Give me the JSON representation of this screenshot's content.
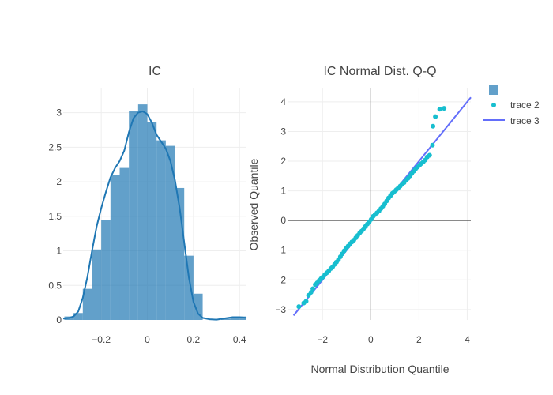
{
  "chart_data": [
    {
      "type": "bar",
      "title": "IC",
      "xlabel": "",
      "ylabel": "",
      "xlim": [
        -0.365,
        0.43
      ],
      "ylim": [
        0,
        3.35
      ],
      "x_ticks": [
        -0.2,
        0,
        0.2,
        0.4
      ],
      "x_tick_labels": [
        "−0.2",
        "0",
        "0.2",
        "0.4"
      ],
      "y_ticks": [
        0,
        0.5,
        1,
        1.5,
        2,
        2.5,
        3
      ],
      "y_tick_labels": [
        "0",
        "0.5",
        "1",
        "1.5",
        "2",
        "2.5",
        "3"
      ],
      "grid": true,
      "bar_color": "#1f77b4",
      "bins": [
        {
          "x0": -0.36,
          "x1": -0.32,
          "y": 0.05
        },
        {
          "x0": -0.32,
          "x1": -0.28,
          "y": 0.1
        },
        {
          "x0": -0.28,
          "x1": -0.24,
          "y": 0.45
        },
        {
          "x0": -0.24,
          "x1": -0.2,
          "y": 1.02
        },
        {
          "x0": -0.2,
          "x1": -0.16,
          "y": 1.45
        },
        {
          "x0": -0.16,
          "x1": -0.12,
          "y": 2.1
        },
        {
          "x0": -0.12,
          "x1": -0.08,
          "y": 2.2
        },
        {
          "x0": -0.08,
          "x1": -0.04,
          "y": 3.02
        },
        {
          "x0": -0.04,
          "x1": 0.0,
          "y": 3.12
        },
        {
          "x0": 0.0,
          "x1": 0.04,
          "y": 2.86
        },
        {
          "x0": 0.04,
          "x1": 0.08,
          "y": 2.6
        },
        {
          "x0": 0.08,
          "x1": 0.12,
          "y": 2.52
        },
        {
          "x0": 0.12,
          "x1": 0.16,
          "y": 1.91
        },
        {
          "x0": 0.16,
          "x1": 0.2,
          "y": 0.93
        },
        {
          "x0": 0.2,
          "x1": 0.24,
          "y": 0.38
        },
        {
          "x0": 0.24,
          "x1": 0.28,
          "y": 0.0
        },
        {
          "x0": 0.28,
          "x1": 0.32,
          "y": 0.0
        },
        {
          "x0": 0.32,
          "x1": 0.36,
          "y": 0.02
        },
        {
          "x0": 0.36,
          "x1": 0.4,
          "y": 0.04
        },
        {
          "x0": 0.4,
          "x1": 0.43,
          "y": 0.05
        }
      ],
      "kde_color": "#1f77b4",
      "kde": [
        [
          -0.365,
          0.02
        ],
        [
          -0.34,
          0.03
        ],
        [
          -0.32,
          0.05
        ],
        [
          -0.3,
          0.12
        ],
        [
          -0.28,
          0.32
        ],
        [
          -0.26,
          0.62
        ],
        [
          -0.24,
          1.0
        ],
        [
          -0.22,
          1.35
        ],
        [
          -0.2,
          1.62
        ],
        [
          -0.18,
          1.85
        ],
        [
          -0.16,
          2.06
        ],
        [
          -0.14,
          2.2
        ],
        [
          -0.12,
          2.3
        ],
        [
          -0.1,
          2.45
        ],
        [
          -0.08,
          2.72
        ],
        [
          -0.06,
          2.92
        ],
        [
          -0.04,
          3.0
        ],
        [
          -0.02,
          3.02
        ],
        [
          0.0,
          2.98
        ],
        [
          0.02,
          2.85
        ],
        [
          0.04,
          2.68
        ],
        [
          0.06,
          2.58
        ],
        [
          0.08,
          2.48
        ],
        [
          0.1,
          2.3
        ],
        [
          0.12,
          2.02
        ],
        [
          0.14,
          1.62
        ],
        [
          0.16,
          1.12
        ],
        [
          0.18,
          0.62
        ],
        [
          0.2,
          0.26
        ],
        [
          0.22,
          0.09
        ],
        [
          0.24,
          0.03
        ],
        [
          0.27,
          0.01
        ],
        [
          0.3,
          0.005
        ],
        [
          0.33,
          0.02
        ],
        [
          0.37,
          0.04
        ],
        [
          0.4,
          0.04
        ],
        [
          0.43,
          0.03
        ]
      ]
    },
    {
      "type": "scatter",
      "title": "IC Normal Dist. Q-Q",
      "xlabel": "Normal Distribution Quantile",
      "ylabel": "Observed Quantile",
      "xlim": [
        -3.45,
        4.15
      ],
      "ylim": [
        -3.35,
        4.45
      ],
      "x_ticks": [
        -2,
        0,
        2,
        4
      ],
      "x_tick_labels": [
        "−2",
        "0",
        "2",
        "4"
      ],
      "y_ticks": [
        -3,
        -2,
        -1,
        0,
        1,
        2,
        3,
        4
      ],
      "y_tick_labels": [
        "−3",
        "−2",
        "−1",
        "0",
        "1",
        "2",
        "3",
        "4"
      ],
      "grid": true,
      "zero_lines": true,
      "point_color": "#17becf",
      "line_color": "#636efa",
      "line": {
        "x": [
          -3.2,
          4.15
        ],
        "y": [
          -3.2,
          4.15
        ]
      },
      "points": [
        [
          -2.98,
          -2.9
        ],
        [
          -2.78,
          -2.78
        ],
        [
          -2.68,
          -2.72
        ],
        [
          -2.58,
          -2.52
        ],
        [
          -2.48,
          -2.42
        ],
        [
          -2.4,
          -2.3
        ],
        [
          -2.3,
          -2.16
        ],
        [
          -2.22,
          -2.1
        ],
        [
          -2.14,
          -2.02
        ],
        [
          -2.06,
          -1.96
        ],
        [
          -1.98,
          -1.9
        ],
        [
          -1.9,
          -1.82
        ],
        [
          -1.82,
          -1.76
        ],
        [
          -1.74,
          -1.7
        ],
        [
          -1.66,
          -1.62
        ],
        [
          -1.58,
          -1.56
        ],
        [
          -1.5,
          -1.48
        ],
        [
          -1.42,
          -1.4
        ],
        [
          -1.34,
          -1.32
        ],
        [
          -1.26,
          -1.22
        ],
        [
          -1.18,
          -1.12
        ],
        [
          -1.1,
          -1.02
        ],
        [
          -1.02,
          -0.94
        ],
        [
          -0.94,
          -0.86
        ],
        [
          -0.86,
          -0.78
        ],
        [
          -0.78,
          -0.72
        ],
        [
          -0.7,
          -0.66
        ],
        [
          -0.62,
          -0.58
        ],
        [
          -0.54,
          -0.5
        ],
        [
          -0.46,
          -0.42
        ],
        [
          -0.38,
          -0.36
        ],
        [
          -0.3,
          -0.28
        ],
        [
          -0.22,
          -0.2
        ],
        [
          -0.14,
          -0.12
        ],
        [
          -0.06,
          -0.04
        ],
        [
          0.02,
          0.04
        ],
        [
          0.1,
          0.14
        ],
        [
          0.18,
          0.2
        ],
        [
          0.26,
          0.26
        ],
        [
          0.34,
          0.32
        ],
        [
          0.42,
          0.4
        ],
        [
          0.5,
          0.48
        ],
        [
          0.58,
          0.56
        ],
        [
          0.66,
          0.66
        ],
        [
          0.74,
          0.76
        ],
        [
          0.82,
          0.84
        ],
        [
          0.9,
          0.92
        ],
        [
          0.98,
          0.98
        ],
        [
          1.06,
          1.04
        ],
        [
          1.14,
          1.1
        ],
        [
          1.22,
          1.16
        ],
        [
          1.3,
          1.22
        ],
        [
          1.38,
          1.28
        ],
        [
          1.46,
          1.36
        ],
        [
          1.54,
          1.42
        ],
        [
          1.62,
          1.5
        ],
        [
          1.7,
          1.58
        ],
        [
          1.78,
          1.66
        ],
        [
          1.86,
          1.74
        ],
        [
          1.94,
          1.8
        ],
        [
          2.02,
          1.86
        ],
        [
          2.1,
          1.92
        ],
        [
          2.18,
          1.98
        ],
        [
          2.26,
          2.04
        ],
        [
          2.34,
          2.14
        ],
        [
          2.44,
          2.2
        ],
        [
          2.56,
          2.54
        ],
        [
          2.58,
          3.18
        ],
        [
          2.68,
          3.5
        ],
        [
          2.86,
          3.75
        ],
        [
          3.04,
          3.78
        ]
      ]
    }
  ],
  "legend": {
    "placement": "top-right",
    "items": [
      {
        "label": "",
        "kind": "bar",
        "color": "#1f77b4"
      },
      {
        "label": "trace 2",
        "kind": "marker",
        "color": "#17becf"
      },
      {
        "label": "trace 3",
        "kind": "line",
        "color": "#636efa"
      }
    ]
  }
}
